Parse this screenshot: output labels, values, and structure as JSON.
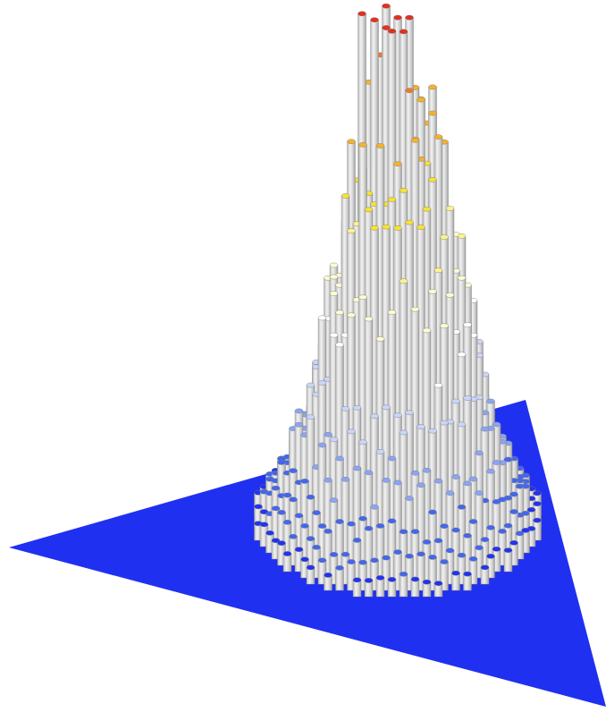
{
  "chart_data": {
    "type": "3d-hexagonal-histogram",
    "title": "",
    "xlabel": "",
    "ylabel": "",
    "zlabel": "",
    "grid": false,
    "legend": "none",
    "base_shape": "triangle",
    "color_scale": [
      "#2233ee",
      "#4466ee",
      "#8aa4f5",
      "#c9d6fb",
      "#ffffff",
      "#fffbd0",
      "#fff38a",
      "#f7e233",
      "#f5b22a",
      "#f0792a",
      "#e33020"
    ],
    "bar_body_color": "#d6d6d6",
    "base_color": "#2030f0",
    "peak": 1.0,
    "spread": 0.42,
    "z_range": [
      0,
      1
    ]
  }
}
